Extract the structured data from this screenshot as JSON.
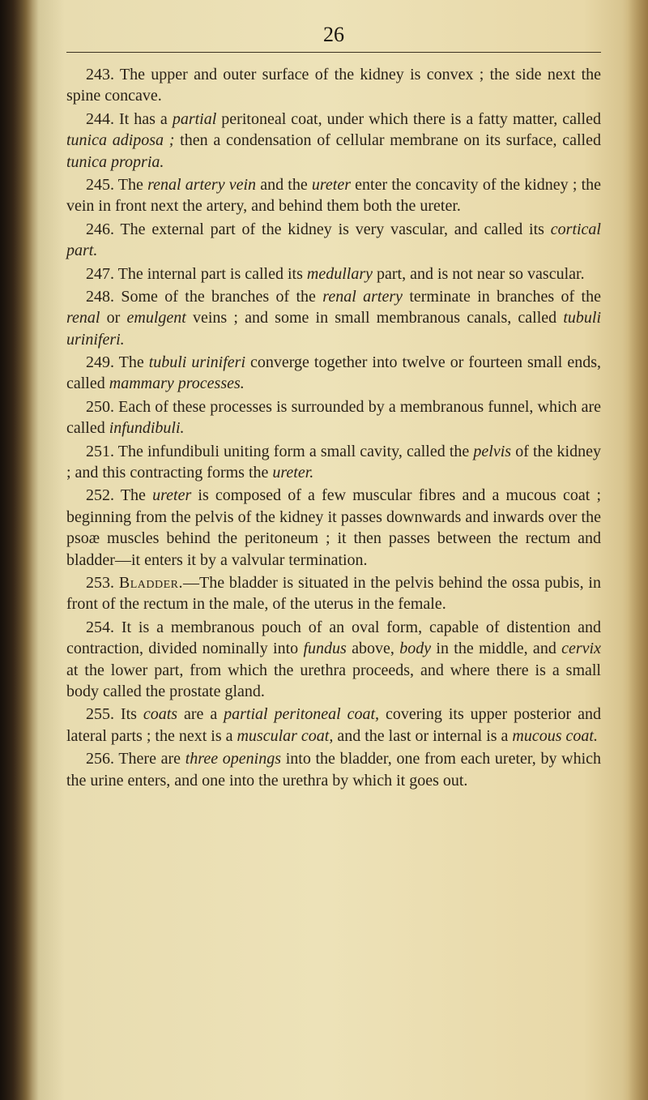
{
  "page_number": "26",
  "paragraphs": [
    {
      "num": "243.",
      "text": "The upper and outer surface of the kidney is convex ; the side next the spine concave."
    },
    {
      "num": "244.",
      "text": "It has a <i>partial</i> peritoneal coat, under which there is a fatty matter, called <i>tunica adiposa ;</i> then a condensation of cellular membrane on its surface, called <i>tunica propria.</i>"
    },
    {
      "num": "245.",
      "text": "The <i>renal artery vein</i> and the <i>ureter</i> enter the concavity of the kidney ; the vein in front next the artery, and behind them both the ureter."
    },
    {
      "num": "246.",
      "text": "The external part of the kidney is very vascular, and called its <i>cortical part.</i>"
    },
    {
      "num": "247.",
      "text": "The internal part is called its <i>medullary</i> part, and is not near so vascular."
    },
    {
      "num": "248.",
      "text": "Some of the branches of the <i>renal artery</i> terminate in branches of the <i>renal</i> or <i>emulgent</i> veins ; and some in small membranous canals, called <i>tubuli uriniferi.</i>"
    },
    {
      "num": "249.",
      "text": "The <i>tubuli uriniferi</i> converge together into twelve or fourteen small ends, called <i>mammary processes.</i>"
    },
    {
      "num": "250.",
      "text": "Each of these processes is surrounded by a membranous funnel, which are called <i>infundibuli.</i>"
    },
    {
      "num": "251.",
      "text": "The infundibuli uniting form a small cavity, called the <i>pelvis</i> of the kidney ; and this contracting forms the <i>ureter.</i>"
    },
    {
      "num": "252.",
      "text": "The <i>ureter</i> is composed of a few muscular fibres and a mucous coat ; beginning from the pelvis of the kidney it passes downwards and inwards over the psoæ muscles behind the peritoneum ; it then passes between the rectum and bladder—it enters it by a valvular termination."
    },
    {
      "num": "253.",
      "text": "<sc>Bladder.</sc>—The bladder is situated in the pelvis behind the ossa pubis, in front of the rectum in the male, of the uterus in the female."
    },
    {
      "num": "254.",
      "text": "It is a membranous pouch of an oval form, capable of distention and contraction, divided nominally into <i>fundus</i> above, <i>body</i> in the middle, and <i>cervix</i> at the lower part, from which the urethra proceeds, and where there is a small body called the prostate gland."
    },
    {
      "num": "255.",
      "text": "Its <i>coats</i> are a <i>partial peritoneal coat,</i> covering its upper posterior and lateral parts ; the next is a <i>muscular coat,</i> and the last or internal is a <i>mucous coat.</i>"
    },
    {
      "num": "256.",
      "text": "There are <i>three openings</i> into the bladder, one from each ureter, by which the urine enters, and one into the urethra by which it goes out."
    }
  ],
  "colors": {
    "text": "#2a2218",
    "page_bg_start": "#e8dcb0",
    "page_bg_end": "#e8d8a8"
  },
  "typography": {
    "body_fontsize": 20,
    "pagenum_fontsize": 26,
    "line_height": 1.32
  }
}
